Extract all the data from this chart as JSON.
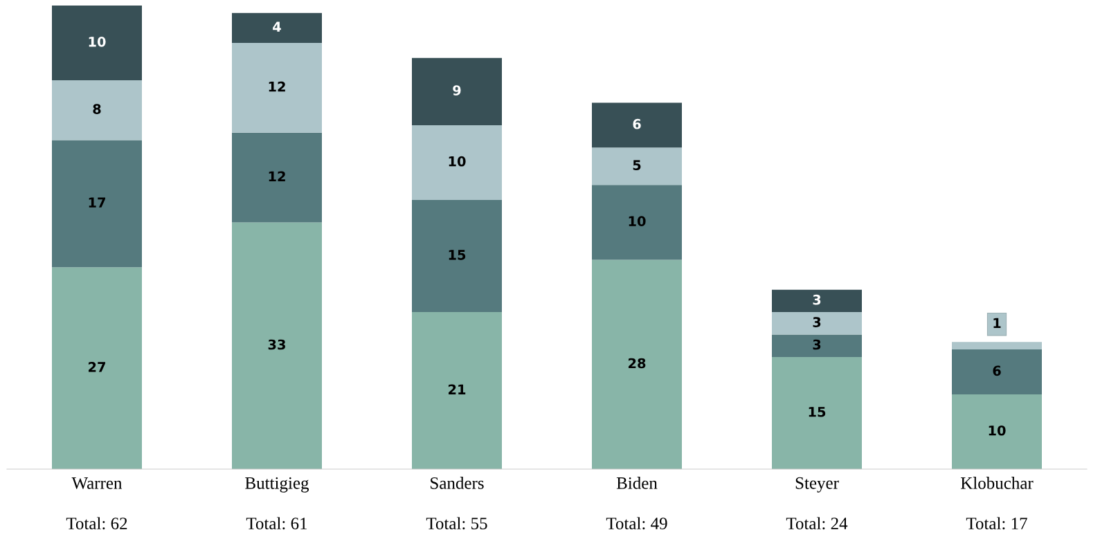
{
  "chart_data": {
    "type": "bar",
    "stacked": true,
    "data_labels": true,
    "categories": [
      "Warren",
      "Buttigieg",
      "Sanders",
      "Biden",
      "Steyer",
      "Klobuchar"
    ],
    "totals": [
      "Total: 62",
      "Total: 61",
      "Total: 55",
      "Total: 49",
      "Total: 24",
      "Total: 17"
    ],
    "series": [
      {
        "color": "#88b5a8",
        "values": [
          27,
          33,
          21,
          28,
          15,
          10
        ]
      },
      {
        "color": "#557a7e",
        "values": [
          17,
          12,
          15,
          10,
          3,
          6
        ]
      },
      {
        "color": "#adc5ca",
        "values": [
          8,
          12,
          10,
          5,
          3,
          1
        ]
      },
      {
        "color": "#385056",
        "values": [
          10,
          4,
          9,
          6,
          3,
          null
        ]
      }
    ],
    "grid": false,
    "legend": false
  }
}
